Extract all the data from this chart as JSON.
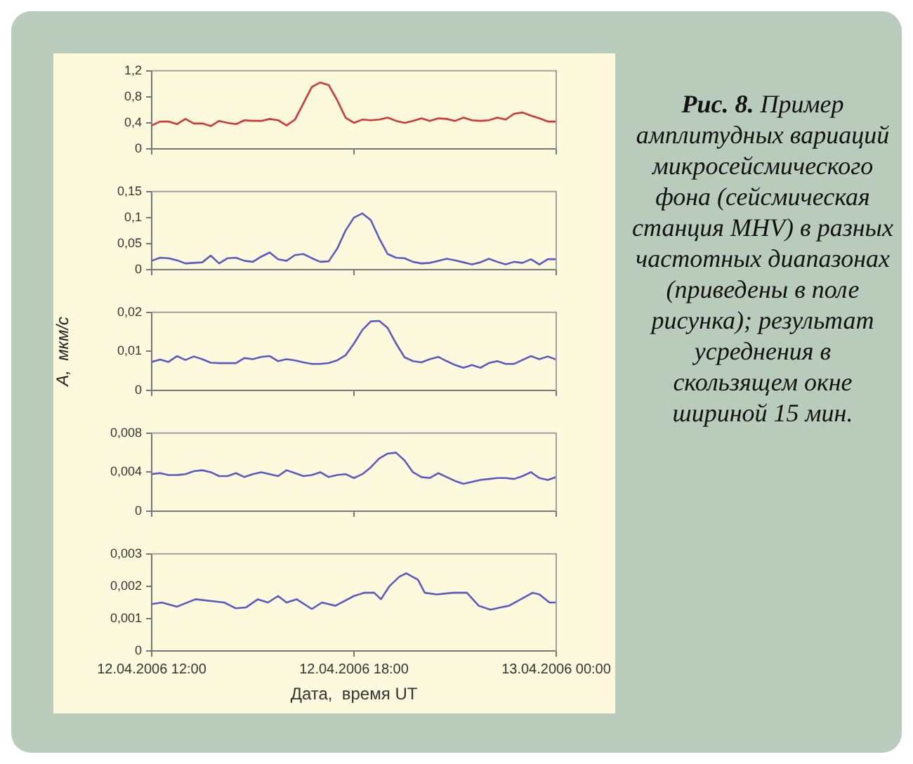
{
  "chart_data": [
    {
      "type": "line",
      "annotations": [
        "Рис. 8.",
        "Пример амплитудных вариаций микросейсмического фона (сейсмическая станция MHV) в разных частотных диапазонах (приведены в поле рисунка); результат усреднения в скользящем окне шириной 15 мин."
      ],
      "x": [
        "2006-04-12T12:00",
        "2006-04-12T12:15",
        "2006-04-12T12:30",
        "2006-04-12T12:45",
        "2006-04-12T13:00",
        "2006-04-12T13:15",
        "2006-04-12T13:30",
        "2006-04-12T13:45",
        "2006-04-12T14:00",
        "2006-04-12T14:15",
        "2006-04-12T14:30",
        "2006-04-12T14:45",
        "2006-04-12T15:00",
        "2006-04-12T15:15",
        "2006-04-12T15:30",
        "2006-04-12T15:45",
        "2006-04-12T16:00",
        "2006-04-12T16:15",
        "2006-04-12T16:30",
        "2006-04-12T16:45",
        "2006-04-12T17:00",
        "2006-04-12T17:15",
        "2006-04-12T17:30",
        "2006-04-12T17:45",
        "2006-04-12T18:00",
        "2006-04-12T18:15",
        "2006-04-12T18:30",
        "2006-04-12T18:45",
        "2006-04-12T19:00",
        "2006-04-12T19:15",
        "2006-04-12T19:30",
        "2006-04-12T19:45",
        "2006-04-12T20:00",
        "2006-04-12T20:15",
        "2006-04-12T20:30",
        "2006-04-12T20:45",
        "2006-04-12T21:00",
        "2006-04-12T21:15",
        "2006-04-12T21:30",
        "2006-04-12T21:45",
        "2006-04-12T22:00",
        "2006-04-12T22:15",
        "2006-04-12T22:30",
        "2006-04-12T22:45",
        "2006-04-12T23:00",
        "2006-04-12T23:15",
        "2006-04-12T23:30",
        "2006-04-12T23:45",
        "2006-04-13T00:00"
      ],
      "series": [
        {
          "color": "#d03838",
          "values": [
            0.36,
            0.42,
            0.42,
            0.38,
            0.46,
            0.39,
            0.39,
            0.35,
            0.43,
            0.4,
            0.38,
            0.44,
            0.43,
            0.43,
            0.46,
            0.44,
            0.36,
            0.45,
            0.7,
            0.95,
            1.02,
            0.98,
            0.75,
            0.48,
            0.4,
            0.45,
            0.44,
            0.45,
            0.48,
            0.43,
            0.4,
            0.43,
            0.47,
            0.43,
            0.47,
            0.46,
            0.43,
            0.48,
            0.44,
            0.43,
            0.44,
            0.48,
            0.45,
            0.54,
            0.56,
            0.51,
            0.47,
            0.42,
            0.42
          ]
        }
      ],
      "xlim": [
        "2006-04-12T12:00",
        "2006-04-13T00:00"
      ],
      "xticks": [
        {
          "value": "2006-04-12T12:00",
          "label": null
        },
        {
          "value": "2006-04-12T18:00",
          "label": null
        },
        {
          "value": "2006-04-13T00:00",
          "label": null
        }
      ],
      "ylim": [
        0,
        1.2
      ],
      "yticks": [
        {
          "value": 0,
          "label": "0"
        },
        {
          "value": 0.4,
          "label": "0,4"
        },
        {
          "value": 0.8,
          "label": "0,8"
        },
        {
          "value": 1.2,
          "label": "1,2"
        }
      ],
      "tick_labels": "y",
      "marker": "none",
      "line_style": "solid"
    },
    {
      "type": "line",
      "x": [
        "2006-04-12T12:00",
        "2006-04-12T12:15",
        "2006-04-12T12:30",
        "2006-04-12T12:45",
        "2006-04-12T13:00",
        "2006-04-12T13:15",
        "2006-04-12T13:30",
        "2006-04-12T13:45",
        "2006-04-12T14:00",
        "2006-04-12T14:15",
        "2006-04-12T14:30",
        "2006-04-12T14:45",
        "2006-04-12T15:00",
        "2006-04-12T15:15",
        "2006-04-12T15:30",
        "2006-04-12T15:45",
        "2006-04-12T16:00",
        "2006-04-12T16:15",
        "2006-04-12T16:30",
        "2006-04-12T16:45",
        "2006-04-12T17:00",
        "2006-04-12T17:15",
        "2006-04-12T17:30",
        "2006-04-12T17:45",
        "2006-04-12T18:00",
        "2006-04-12T18:15",
        "2006-04-12T18:30",
        "2006-04-12T18:45",
        "2006-04-12T19:00",
        "2006-04-12T19:15",
        "2006-04-12T19:30",
        "2006-04-12T19:45",
        "2006-04-12T20:00",
        "2006-04-12T20:15",
        "2006-04-12T20:30",
        "2006-04-12T20:45",
        "2006-04-12T21:00",
        "2006-04-12T21:15",
        "2006-04-12T21:30",
        "2006-04-12T21:45",
        "2006-04-12T22:00",
        "2006-04-12T22:15",
        "2006-04-12T22:30",
        "2006-04-12T22:45",
        "2006-04-12T23:00",
        "2006-04-12T23:15",
        "2006-04-12T23:30",
        "2006-04-12T23:45",
        "2006-04-13T00:00"
      ],
      "series": [
        {
          "color": "#5a5ac0",
          "values": [
            0.017,
            0.023,
            0.022,
            0.018,
            0.012,
            0.013,
            0.014,
            0.027,
            0.012,
            0.022,
            0.023,
            0.017,
            0.015,
            0.025,
            0.033,
            0.02,
            0.017,
            0.028,
            0.03,
            0.022,
            0.015,
            0.016,
            0.04,
            0.075,
            0.1,
            0.108,
            0.095,
            0.06,
            0.03,
            0.023,
            0.022,
            0.015,
            0.012,
            0.013,
            0.017,
            0.021,
            0.018,
            0.014,
            0.01,
            0.014,
            0.021,
            0.015,
            0.01,
            0.015,
            0.013,
            0.02,
            0.01,
            0.02,
            0.02
          ]
        }
      ],
      "xlim": [
        "2006-04-12T12:00",
        "2006-04-13T00:00"
      ],
      "xticks": [
        {
          "value": "2006-04-12T12:00",
          "label": null
        },
        {
          "value": "2006-04-12T18:00",
          "label": null
        },
        {
          "value": "2006-04-13T00:00",
          "label": null
        }
      ],
      "ylim": [
        0,
        0.15
      ],
      "yticks": [
        {
          "value": 0,
          "label": "0"
        },
        {
          "value": 0.05,
          "label": "0,05"
        },
        {
          "value": 0.1,
          "label": "0,1"
        },
        {
          "value": 0.15,
          "label": "0,15"
        }
      ],
      "tick_labels": "y",
      "marker": "none",
      "line_style": "solid"
    },
    {
      "type": "line",
      "ylabel": "A,  мкм/с",
      "x": [
        "2006-04-12T12:00",
        "2006-04-12T12:15",
        "2006-04-12T12:30",
        "2006-04-12T12:45",
        "2006-04-12T13:00",
        "2006-04-12T13:15",
        "2006-04-12T13:30",
        "2006-04-12T13:45",
        "2006-04-12T14:00",
        "2006-04-12T14:15",
        "2006-04-12T14:30",
        "2006-04-12T14:45",
        "2006-04-12T15:00",
        "2006-04-12T15:15",
        "2006-04-12T15:30",
        "2006-04-12T15:45",
        "2006-04-12T16:00",
        "2006-04-12T16:15",
        "2006-04-12T16:30",
        "2006-04-12T16:45",
        "2006-04-12T17:00",
        "2006-04-12T17:15",
        "2006-04-12T17:30",
        "2006-04-12T17:45",
        "2006-04-12T18:00",
        "2006-04-12T18:15",
        "2006-04-12T18:30",
        "2006-04-12T18:45",
        "2006-04-12T19:00",
        "2006-04-12T19:15",
        "2006-04-12T19:30",
        "2006-04-12T19:45",
        "2006-04-12T20:00",
        "2006-04-12T20:15",
        "2006-04-12T20:30",
        "2006-04-12T20:45",
        "2006-04-12T21:00",
        "2006-04-12T21:15",
        "2006-04-12T21:30",
        "2006-04-12T21:45",
        "2006-04-12T22:00",
        "2006-04-12T22:15",
        "2006-04-12T22:30",
        "2006-04-12T22:45",
        "2006-04-12T23:00",
        "2006-04-12T23:15",
        "2006-04-12T23:30",
        "2006-04-12T23:45",
        "2006-04-13T00:00"
      ],
      "series": [
        {
          "color": "#5a5ac0",
          "values": [
            0.0073,
            0.0079,
            0.0073,
            0.0088,
            0.0078,
            0.0087,
            0.008,
            0.0071,
            0.007,
            0.007,
            0.007,
            0.0083,
            0.008,
            0.0086,
            0.0088,
            0.0075,
            0.008,
            0.0077,
            0.0072,
            0.0068,
            0.0068,
            0.007,
            0.0077,
            0.009,
            0.012,
            0.0155,
            0.0177,
            0.0178,
            0.016,
            0.012,
            0.0085,
            0.0075,
            0.0072,
            0.008,
            0.0086,
            0.0075,
            0.0065,
            0.0058,
            0.0065,
            0.0058,
            0.007,
            0.0075,
            0.0068,
            0.0068,
            0.0078,
            0.0088,
            0.008,
            0.0087,
            0.0079
          ]
        }
      ],
      "xlim": [
        "2006-04-12T12:00",
        "2006-04-13T00:00"
      ],
      "xticks": [
        {
          "value": "2006-04-12T12:00",
          "label": null
        },
        {
          "value": "2006-04-12T18:00",
          "label": null
        },
        {
          "value": "2006-04-13T00:00",
          "label": null
        }
      ],
      "ylim": [
        0,
        0.02
      ],
      "yticks": [
        {
          "value": 0,
          "label": "0"
        },
        {
          "value": 0.01,
          "label": "0,01"
        },
        {
          "value": 0.02,
          "label": "0,02"
        }
      ],
      "tick_labels": "y",
      "marker": "none",
      "line_style": "solid"
    },
    {
      "type": "line",
      "x": [
        "2006-04-12T12:00",
        "2006-04-12T12:15",
        "2006-04-12T12:30",
        "2006-04-12T12:45",
        "2006-04-12T13:00",
        "2006-04-12T13:15",
        "2006-04-12T13:30",
        "2006-04-12T13:45",
        "2006-04-12T14:00",
        "2006-04-12T14:15",
        "2006-04-12T14:30",
        "2006-04-12T14:45",
        "2006-04-12T15:00",
        "2006-04-12T15:15",
        "2006-04-12T15:30",
        "2006-04-12T15:45",
        "2006-04-12T16:00",
        "2006-04-12T16:15",
        "2006-04-12T16:30",
        "2006-04-12T16:45",
        "2006-04-12T17:00",
        "2006-04-12T17:15",
        "2006-04-12T17:30",
        "2006-04-12T17:45",
        "2006-04-12T18:00",
        "2006-04-12T18:15",
        "2006-04-12T18:30",
        "2006-04-12T18:45",
        "2006-04-12T19:00",
        "2006-04-12T19:15",
        "2006-04-12T19:30",
        "2006-04-12T19:45",
        "2006-04-12T20:00",
        "2006-04-12T20:15",
        "2006-04-12T20:30",
        "2006-04-12T20:45",
        "2006-04-12T21:00",
        "2006-04-12T21:15",
        "2006-04-12T21:30",
        "2006-04-12T21:45",
        "2006-04-12T22:00",
        "2006-04-12T22:15",
        "2006-04-12T22:30",
        "2006-04-12T22:45",
        "2006-04-12T23:00",
        "2006-04-12T23:15",
        "2006-04-12T23:30",
        "2006-04-12T23:45",
        "2006-04-13T00:00"
      ],
      "series": [
        {
          "color": "#5a5ac0",
          "values": [
            0.0038,
            0.0039,
            0.0037,
            0.0037,
            0.0038,
            0.0041,
            0.0042,
            0.004,
            0.0036,
            0.0036,
            0.0039,
            0.0035,
            0.0038,
            0.004,
            0.0038,
            0.0036,
            0.0042,
            0.0039,
            0.0036,
            0.0037,
            0.004,
            0.0035,
            0.0037,
            0.0038,
            0.0034,
            0.0038,
            0.0045,
            0.0054,
            0.0059,
            0.006,
            0.0052,
            0.004,
            0.0035,
            0.0034,
            0.0039,
            0.0035,
            0.0031,
            0.0028,
            0.003,
            0.0032,
            0.0033,
            0.0034,
            0.0034,
            0.0033,
            0.0036,
            0.004,
            0.0034,
            0.0032,
            0.0035
          ]
        }
      ],
      "xlim": [
        "2006-04-12T12:00",
        "2006-04-13T00:00"
      ],
      "xticks": [
        {
          "value": "2006-04-12T12:00",
          "label": null
        },
        {
          "value": "2006-04-12T18:00",
          "label": null
        },
        {
          "value": "2006-04-13T00:00",
          "label": null
        }
      ],
      "ylim": [
        0,
        0.008
      ],
      "yticks": [
        {
          "value": 0,
          "label": "0"
        },
        {
          "value": 0.004,
          "label": "0,004"
        },
        {
          "value": 0.008,
          "label": "0,008"
        }
      ],
      "tick_labels": "y",
      "marker": "none",
      "line_style": "solid"
    },
    {
      "type": "line",
      "xlabel": "Дата,  время UT",
      "x": [
        "2006-04-12T12:00",
        "2006-04-12T12:18",
        "2006-04-12T12:45",
        "2006-04-12T13:18",
        "2006-04-12T14:09",
        "2006-04-12T14:30",
        "2006-04-12T14:48",
        "2006-04-12T15:09",
        "2006-04-12T15:27",
        "2006-04-12T15:45",
        "2006-04-12T16:00",
        "2006-04-12T16:18",
        "2006-04-12T16:45",
        "2006-04-12T17:03",
        "2006-04-12T17:27",
        "2006-04-12T18:00",
        "2006-04-12T18:18",
        "2006-04-12T18:36",
        "2006-04-12T18:48",
        "2006-04-12T19:03",
        "2006-04-12T19:21",
        "2006-04-12T19:33",
        "2006-04-12T19:54",
        "2006-04-12T20:06",
        "2006-04-12T20:27",
        "2006-04-12T20:57",
        "2006-04-12T21:21",
        "2006-04-12T21:42",
        "2006-04-12T22:03",
        "2006-04-12T22:21",
        "2006-04-12T22:36",
        "2006-04-12T22:57",
        "2006-04-12T23:18",
        "2006-04-12T23:30",
        "2006-04-12T23:48",
        "2006-04-13T00:00"
      ],
      "series": [
        {
          "color": "#5a5ac0",
          "values": [
            0.00145,
            0.0015,
            0.00137,
            0.0016,
            0.0015,
            0.00132,
            0.00135,
            0.0016,
            0.0015,
            0.0017,
            0.0015,
            0.0016,
            0.0013,
            0.0015,
            0.0014,
            0.0017,
            0.0018,
            0.0018,
            0.0016,
            0.002,
            0.0023,
            0.0024,
            0.0022,
            0.0018,
            0.00175,
            0.0018,
            0.0018,
            0.0014,
            0.00128,
            0.00135,
            0.0014,
            0.0016,
            0.0018,
            0.00175,
            0.0015,
            0.0015
          ]
        }
      ],
      "xlim": [
        "2006-04-12T12:00",
        "2006-04-13T00:00"
      ],
      "xticks": [
        {
          "value": "2006-04-12T12:00",
          "label": "12.04.2006 12:00"
        },
        {
          "value": "2006-04-12T18:00",
          "label": "12.04.2006 18:00"
        },
        {
          "value": "2006-04-13T00:00",
          "label": "13.04.2006 00:00"
        }
      ],
      "ylim": [
        0,
        0.003
      ],
      "yticks": [
        {
          "value": 0,
          "label": "0"
        },
        {
          "value": 0.001,
          "label": "0,001"
        },
        {
          "value": 0.002,
          "label": "0,002"
        },
        {
          "value": 0.003,
          "label": "0,003"
        }
      ],
      "marker": "none",
      "line_style": "solid"
    }
  ]
}
